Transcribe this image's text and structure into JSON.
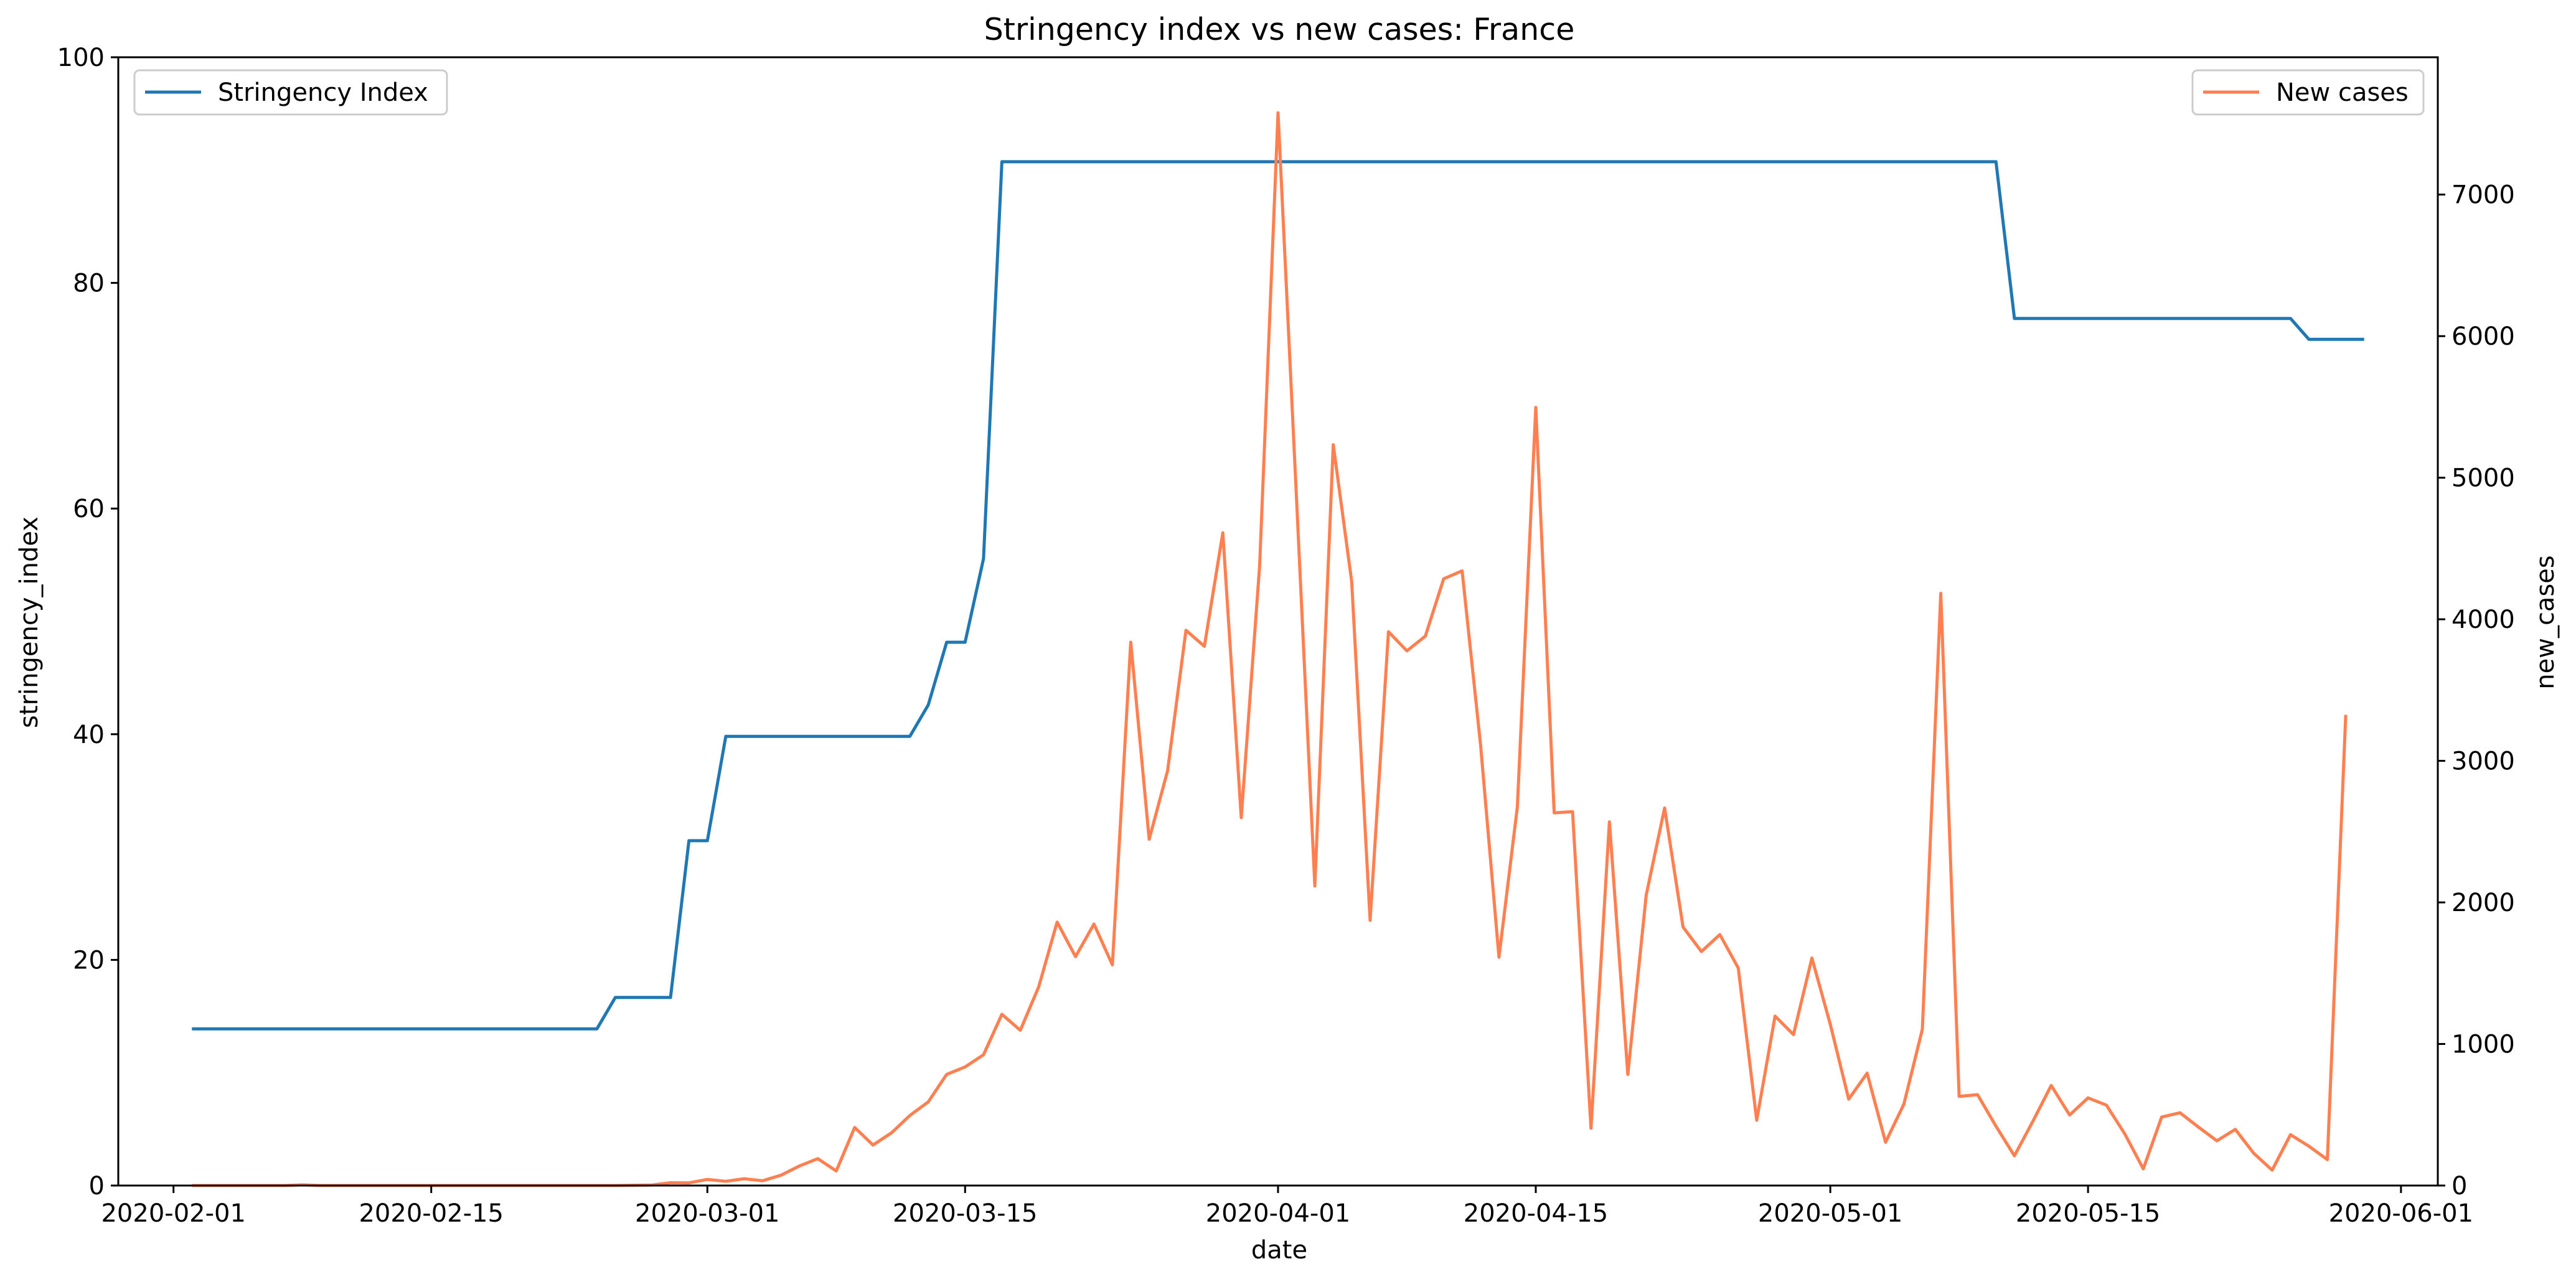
{
  "chart_data": {
    "type": "line",
    "title": "Stringency index vs new cases:  France",
    "xlabel": "date",
    "ylabel_left": "stringency_index",
    "ylabel_right": "new_cases",
    "x_range": [
      "2020-01-29",
      "2020-06-03"
    ],
    "ylim_left": [
      0,
      100
    ],
    "ylim_right": [
      0,
      7970
    ],
    "grid": false,
    "x_ticks": [
      "2020-02-01",
      "2020-02-15",
      "2020-03-01",
      "2020-03-15",
      "2020-04-01",
      "2020-04-15",
      "2020-05-01",
      "2020-05-15",
      "2020-06-01"
    ],
    "y_ticks_left": [
      0,
      20,
      40,
      60,
      80,
      100
    ],
    "y_ticks_right": [
      0,
      1000,
      2000,
      3000,
      4000,
      5000,
      6000,
      7000
    ],
    "series": [
      {
        "name": "Stringency Index",
        "axis": "left",
        "color": "#1f77b4",
        "legend_position": "upper left",
        "points": [
          [
            "2020-02-02",
            13.89
          ],
          [
            "2020-02-24",
            13.89
          ],
          [
            "2020-02-25",
            16.67
          ],
          [
            "2020-02-28",
            16.67
          ],
          [
            "2020-02-29",
            30.56
          ],
          [
            "2020-03-01",
            30.56
          ],
          [
            "2020-03-02",
            39.81
          ],
          [
            "2020-03-12",
            39.81
          ],
          [
            "2020-03-13",
            42.59
          ],
          [
            "2020-03-14",
            48.15
          ],
          [
            "2020-03-15",
            48.15
          ],
          [
            "2020-03-16",
            55.56
          ],
          [
            "2020-03-17",
            90.74
          ],
          [
            "2020-05-10",
            90.74
          ],
          [
            "2020-05-11",
            76.85
          ],
          [
            "2020-05-26",
            76.85
          ],
          [
            "2020-05-27",
            75.0
          ],
          [
            "2020-05-30",
            75.0
          ]
        ]
      },
      {
        "name": "New cases",
        "axis": "right",
        "color": "#ff7f50",
        "legend_position": "upper right",
        "points": [
          [
            "2020-02-02",
            0
          ],
          [
            "2020-02-03",
            0
          ],
          [
            "2020-02-04",
            0
          ],
          [
            "2020-02-05",
            0
          ],
          [
            "2020-02-06",
            0
          ],
          [
            "2020-02-07",
            0
          ],
          [
            "2020-02-08",
            5
          ],
          [
            "2020-02-09",
            0
          ],
          [
            "2020-02-10",
            0
          ],
          [
            "2020-02-11",
            0
          ],
          [
            "2020-02-12",
            0
          ],
          [
            "2020-02-13",
            0
          ],
          [
            "2020-02-14",
            0
          ],
          [
            "2020-02-15",
            0
          ],
          [
            "2020-02-16",
            0
          ],
          [
            "2020-02-17",
            0
          ],
          [
            "2020-02-18",
            0
          ],
          [
            "2020-02-19",
            0
          ],
          [
            "2020-02-20",
            0
          ],
          [
            "2020-02-21",
            0
          ],
          [
            "2020-02-22",
            0
          ],
          [
            "2020-02-23",
            0
          ],
          [
            "2020-02-24",
            0
          ],
          [
            "2020-02-25",
            0
          ],
          [
            "2020-02-26",
            2
          ],
          [
            "2020-02-27",
            4
          ],
          [
            "2020-02-28",
            20
          ],
          [
            "2020-02-29",
            19
          ],
          [
            "2020-03-01",
            43
          ],
          [
            "2020-03-02",
            30
          ],
          [
            "2020-03-03",
            48
          ],
          [
            "2020-03-04",
            34
          ],
          [
            "2020-03-05",
            73
          ],
          [
            "2020-03-06",
            138
          ],
          [
            "2020-03-07",
            190
          ],
          [
            "2020-03-08",
            103
          ],
          [
            "2020-03-09",
            410
          ],
          [
            "2020-03-10",
            286
          ],
          [
            "2020-03-11",
            372
          ],
          [
            "2020-03-12",
            495
          ],
          [
            "2020-03-13",
            591
          ],
          [
            "2020-03-14",
            785
          ],
          [
            "2020-03-15",
            838
          ],
          [
            "2020-03-16",
            924
          ],
          [
            "2020-03-17",
            1210
          ],
          [
            "2020-03-18",
            1097
          ],
          [
            "2020-03-19",
            1404
          ],
          [
            "2020-03-20",
            1861
          ],
          [
            "2020-03-21",
            1617
          ],
          [
            "2020-03-22",
            1847
          ],
          [
            "2020-03-23",
            1559
          ],
          [
            "2020-03-24",
            3838
          ],
          [
            "2020-03-25",
            2446
          ],
          [
            "2020-03-26",
            2931
          ],
          [
            "2020-03-27",
            3922
          ],
          [
            "2020-03-28",
            3809
          ],
          [
            "2020-03-29",
            4611
          ],
          [
            "2020-03-30",
            2599
          ],
          [
            "2020-03-31",
            4376
          ],
          [
            "2020-04-01",
            7578
          ],
          [
            "2020-04-02",
            4861
          ],
          [
            "2020-04-03",
            2116
          ],
          [
            "2020-04-04",
            5233
          ],
          [
            "2020-04-05",
            4267
          ],
          [
            "2020-04-06",
            1873
          ],
          [
            "2020-04-07",
            3912
          ],
          [
            "2020-04-08",
            3777
          ],
          [
            "2020-04-09",
            3881
          ],
          [
            "2020-04-10",
            4286
          ],
          [
            "2020-04-11",
            4342
          ],
          [
            "2020-04-12",
            3114
          ],
          [
            "2020-04-13",
            1613
          ],
          [
            "2020-04-14",
            2673
          ],
          [
            "2020-04-15",
            5497
          ],
          [
            "2020-04-16",
            2633
          ],
          [
            "2020-04-17",
            2641
          ],
          [
            "2020-04-18",
            405
          ],
          [
            "2020-04-19",
            2569
          ],
          [
            "2020-04-20",
            785
          ],
          [
            "2020-04-21",
            2051
          ],
          [
            "2020-04-22",
            2667
          ],
          [
            "2020-04-23",
            1826
          ],
          [
            "2020-04-24",
            1653
          ],
          [
            "2020-04-25",
            1773
          ],
          [
            "2020-04-26",
            1537
          ],
          [
            "2020-04-27",
            461
          ],
          [
            "2020-04-28",
            1197
          ],
          [
            "2020-04-29",
            1066
          ],
          [
            "2020-04-30",
            1607
          ],
          [
            "2020-05-01",
            1139
          ],
          [
            "2020-05-02",
            610
          ],
          [
            "2020-05-03",
            794
          ],
          [
            "2020-05-04",
            306
          ],
          [
            "2020-05-05",
            576
          ],
          [
            "2020-05-06",
            1104
          ],
          [
            "2020-05-07",
            4183
          ],
          [
            "2020-05-08",
            630
          ],
          [
            "2020-05-09",
            642
          ],
          [
            "2020-05-10",
            419
          ],
          [
            "2020-05-11",
            210
          ],
          [
            "2020-05-12",
            453
          ],
          [
            "2020-05-13",
            707
          ],
          [
            "2020-05-14",
            498
          ],
          [
            "2020-05-15",
            619
          ],
          [
            "2020-05-16",
            568
          ],
          [
            "2020-05-17",
            364
          ],
          [
            "2020-05-18",
            118
          ],
          [
            "2020-05-19",
            484
          ],
          [
            "2020-05-20",
            514
          ],
          [
            "2020-05-21",
            413
          ],
          [
            "2020-05-22",
            316
          ],
          [
            "2020-05-23",
            397
          ],
          [
            "2020-05-24",
            228
          ],
          [
            "2020-05-25",
            109
          ],
          [
            "2020-05-26",
            359
          ],
          [
            "2020-05-27",
            278
          ],
          [
            "2020-05-28",
            183
          ],
          [
            "2020-05-29",
            3325
          ]
        ]
      }
    ]
  }
}
